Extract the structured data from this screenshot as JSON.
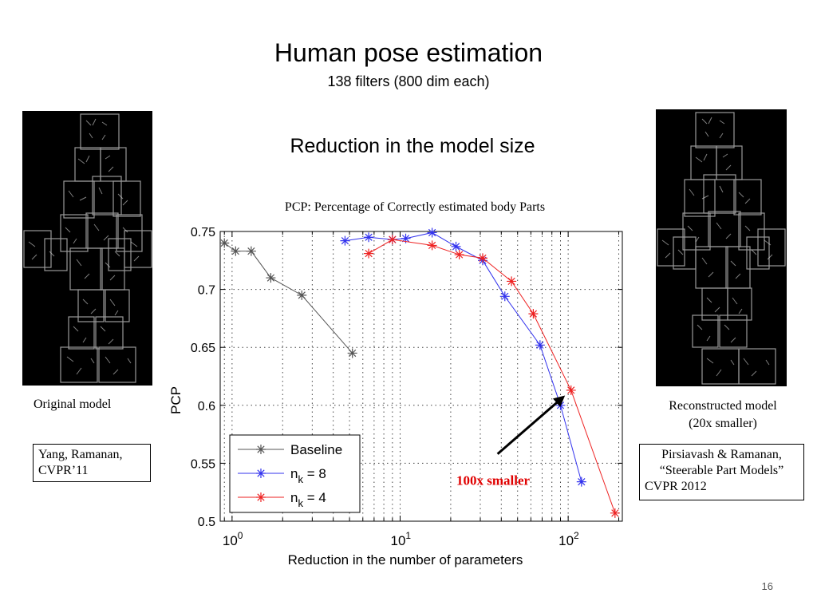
{
  "slide": {
    "title": "Human pose estimation",
    "subtitle": "138 filters (800 dim each)",
    "section_title": "Reduction in the model size",
    "chart_caption": "PCP: Percentage of Correctly estimated body Parts",
    "page_number": "16"
  },
  "left_panel": {
    "caption": "Original model",
    "citation_line1": "Yang, Ramanan,",
    "citation_line2": "CVPR’11"
  },
  "right_panel": {
    "caption_line1": "Reconstructed model",
    "caption_line2": "(20x smaller)",
    "citation_line1": "Pirsiavash & Ramanan,",
    "citation_line2": "“Steerable Part Models”",
    "citation_line3": "CVPR 2012"
  },
  "chart_data": {
    "type": "line",
    "xlabel": "Reduction in the number of parameters",
    "ylabel": "PCP",
    "xscale": "log",
    "xlim": [
      0.85,
      210
    ],
    "ylim": [
      0.5,
      0.75
    ],
    "yticks": [
      "0.5",
      "0.55",
      "0.6",
      "0.65",
      "0.7",
      "0.75"
    ],
    "xticks": [
      {
        "value": 1,
        "exponent": "0"
      },
      {
        "value": 10,
        "exponent": "1"
      },
      {
        "value": 100,
        "exponent": "2"
      }
    ],
    "grid": true,
    "legend": "bottom-left",
    "series": [
      {
        "name": "Baseline",
        "color": "#555555",
        "x": [
          0.9,
          1.05,
          1.3,
          1.7,
          2.6,
          5.2
        ],
        "y": [
          0.74,
          0.733,
          0.733,
          0.71,
          0.695,
          0.645
        ]
      },
      {
        "name": "n_k = 8",
        "color": "#3333ee",
        "x": [
          4.7,
          6.5,
          9.0,
          10.8,
          15.5,
          21.5,
          31.0,
          42.0,
          68.0,
          90.0,
          120.0
        ],
        "y": [
          0.742,
          0.745,
          0.743,
          0.744,
          0.749,
          0.737,
          0.725,
          0.694,
          0.652,
          0.6,
          0.534
        ]
      },
      {
        "name": "n_k = 4",
        "color": "#ee2222",
        "x": [
          6.5,
          9.0,
          15.5,
          22.5,
          31.0,
          46.0,
          62.0,
          104.0,
          190.0
        ],
        "y": [
          0.731,
          0.743,
          0.738,
          0.73,
          0.727,
          0.707,
          0.679,
          0.613,
          0.507
        ]
      }
    ],
    "legend_items": [
      {
        "name": "Baseline",
        "subscript": "",
        "suffix": ""
      },
      {
        "name": "n",
        "subscript": "k",
        "suffix": " = 8"
      },
      {
        "name": "n",
        "subscript": "k",
        "suffix": " = 4"
      }
    ],
    "annotation": {
      "text": "100x smaller",
      "color": "#e00000"
    }
  }
}
